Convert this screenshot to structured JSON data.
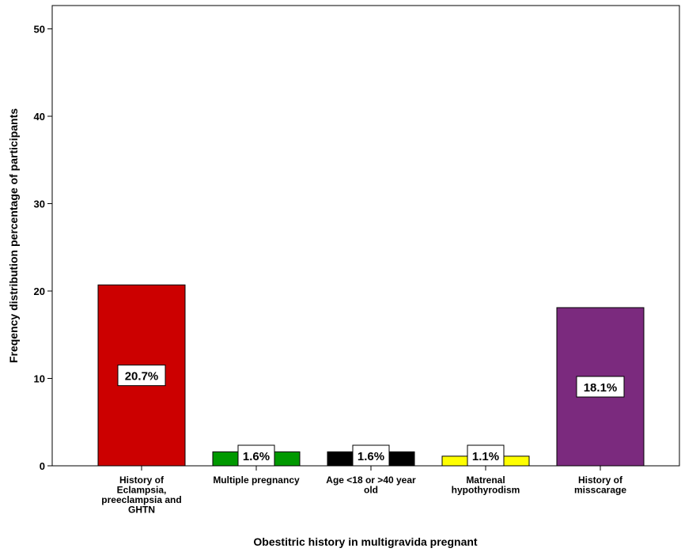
{
  "chart_data": {
    "type": "bar",
    "categories": [
      "History of Eclampsia, preeclampsia and GHTN",
      "Multiple pregnancy",
      "Age <18 or >40 year old",
      "Matrenal hypothyrodism",
      "History of misscarage"
    ],
    "category_label_lines": [
      [
        "History of",
        "Eclampsia,",
        "preeclampsia and",
        "GHTN"
      ],
      [
        "Multiple pregnancy"
      ],
      [
        "Age <18 or >40 year",
        "old"
      ],
      [
        "Matrenal",
        "hypothyrodism"
      ],
      [
        "History of",
        "misscarage"
      ]
    ],
    "values": [
      20.7,
      1.6,
      1.6,
      1.1,
      18.1
    ],
    "data_labels": [
      "20.7%",
      "1.6%",
      "1.6%",
      "1.1%",
      "18.1%"
    ],
    "colors": [
      "#cc0000",
      "#009900",
      "#000000",
      "#ffff00",
      "#7b2a7e"
    ],
    "xlabel": "Obestitric history in multigravida pregnant",
    "ylabel": "Freqency distribution percentage of participants",
    "ylim": [
      0,
      52
    ],
    "yticks": [
      0,
      10,
      20,
      30,
      40,
      50
    ],
    "grid": false,
    "legend": "none"
  }
}
